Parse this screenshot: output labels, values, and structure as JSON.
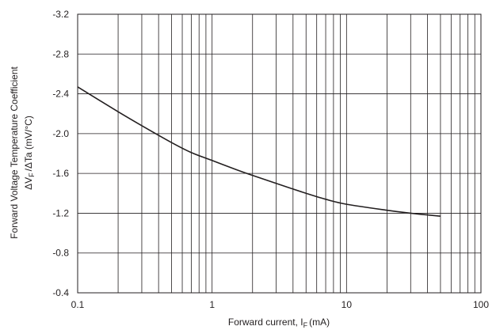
{
  "chart_data": {
    "type": "line",
    "title": "",
    "xlabel": {
      "text": "Forward current, I",
      "sub": "F",
      "unit": "(mA)"
    },
    "ylabel": {
      "line1": "Forward Voltage Temperature Coefficient",
      "line2_prefix": "ΔV",
      "line2_sub": "F",
      "line2_rest": "/ΔTa (mV/°C)"
    },
    "x_scale": "log",
    "xlim": [
      0.1,
      100
    ],
    "ylim": [
      -0.4,
      -3.2
    ],
    "y_axis_inverted": true,
    "grid": true,
    "x_ticks": [
      0.1,
      1,
      10,
      100
    ],
    "x_tick_labels": [
      "0.1",
      "1",
      "10",
      "100"
    ],
    "y_ticks": [
      -3.2,
      -2.8,
      -2.4,
      -2.0,
      -1.6,
      -1.2,
      -0.8,
      -0.4
    ],
    "y_tick_labels": [
      "-3.2",
      "-2.8",
      "-2.4",
      "-2.0",
      "-1.6",
      "-1.2",
      "-0.8",
      "-0.4"
    ],
    "series": [
      {
        "x": [
          0.1,
          0.2,
          0.3,
          0.5,
          0.7,
          1,
          1.5,
          2,
          3,
          5,
          7,
          10,
          20,
          30,
          50
        ],
        "y": [
          -2.47,
          -2.22,
          -2.08,
          -1.91,
          -1.81,
          -1.73,
          -1.64,
          -1.58,
          -1.5,
          -1.4,
          -1.34,
          -1.29,
          -1.23,
          -1.2,
          -1.17
        ]
      }
    ]
  }
}
